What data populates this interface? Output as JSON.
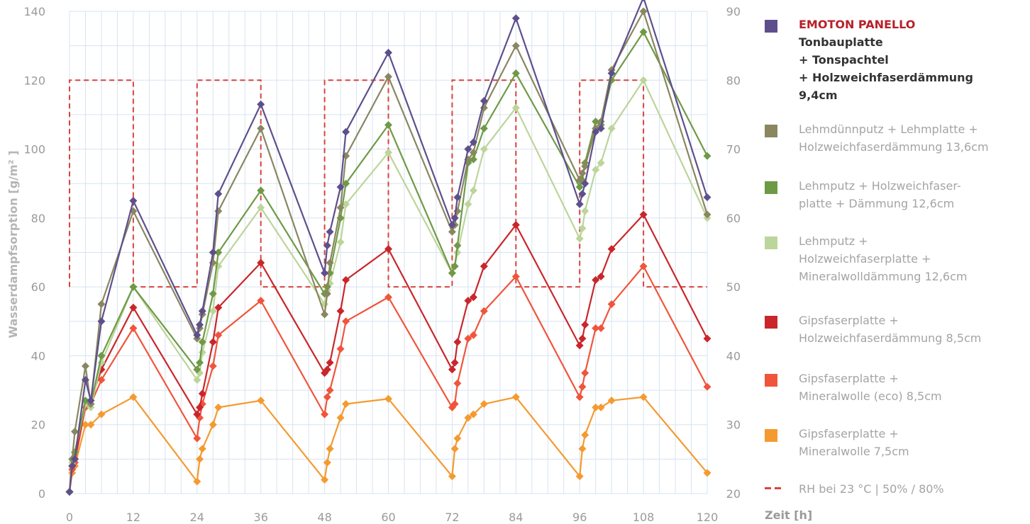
{
  "chart_data": {
    "type": "line",
    "xlabel": "Zeit [h]",
    "ylabel": "Wasserdampfsorption [g/m² ]",
    "y2label": "",
    "xlim": [
      0,
      120
    ],
    "ylim": [
      0,
      140
    ],
    "y2lim": [
      20,
      90
    ],
    "x_ticks": [
      0,
      12,
      24,
      36,
      48,
      60,
      72,
      84,
      96,
      108,
      120
    ],
    "y_ticks": [
      0,
      20,
      40,
      60,
      80,
      100,
      120,
      140
    ],
    "y2_ticks": [
      20,
      30,
      40,
      50,
      60,
      70,
      80,
      90
    ],
    "grid": true,
    "legend_position": "right",
    "x": [
      0,
      0.5,
      1,
      3,
      4,
      6,
      12,
      24,
      24.5,
      25,
      27,
      28,
      30,
      36,
      48,
      48.5,
      49,
      51,
      52,
      54,
      60,
      72,
      72.5,
      73,
      75,
      76,
      78,
      84,
      96,
      96.5,
      97,
      99,
      100,
      102,
      108,
      120
    ],
    "series": [
      {
        "name": "EMOTON PANELLO Tonbauplatte + Tonspachtel + Holzweichfaserdämmung 9,4cm",
        "color": "#5e4f8c",
        "marker": true,
        "values": [
          0.5,
          8,
          10,
          33,
          27,
          50,
          85,
          46,
          49,
          53,
          70,
          87,
          null,
          113,
          64,
          72,
          76,
          89,
          105,
          null,
          128,
          78,
          80,
          86,
          100,
          102,
          114,
          138,
          84,
          87,
          90,
          105,
          106,
          122,
          144,
          86
        ]
      },
      {
        "name": "Lehmdünnputz + Lehmplatte + Holzweichfaserdämmung 13,6cm",
        "color": "#8a8660",
        "marker": true,
        "values": [
          0.5,
          10,
          18,
          37,
          26,
          55,
          82,
          45,
          48,
          52,
          67,
          82,
          null,
          106,
          52,
          58,
          67,
          83,
          98,
          null,
          121,
          76,
          78,
          82,
          97,
          99,
          112,
          130,
          91,
          93,
          95,
          106,
          108,
          123,
          140,
          81
        ]
      },
      {
        "name": "Lehmputz + Holzweichfaserplatte + Dämmung 12,6cm",
        "color": "#6e9a45",
        "marker": true,
        "values": [
          0.5,
          10,
          12,
          27,
          26,
          40,
          60,
          36,
          38,
          44,
          58,
          70,
          null,
          88,
          58,
          60,
          64,
          80,
          90,
          null,
          107,
          64,
          66,
          72,
          96,
          97,
          106,
          122,
          89,
          91,
          96,
          108,
          107,
          120,
          134,
          98
        ]
      },
      {
        "name": "Lehmputz + Holzweichfaserplatte + Mineralwolldämmung 12,6cm",
        "color": "#bcd59a",
        "marker": true,
        "values": [
          0.5,
          9,
          12,
          26,
          25,
          38,
          60,
          33,
          35,
          41,
          53,
          66,
          null,
          83,
          55,
          59,
          61,
          73,
          84,
          null,
          99,
          64,
          66,
          70,
          84,
          88,
          100,
          112,
          74,
          77,
          82,
          94,
          96,
          106,
          120,
          80
        ]
      },
      {
        "name": "Gipsfaserplatte + Holzweichfaserdämmung 8,5cm",
        "color": "#c9262b",
        "marker": true,
        "values": [
          0.5,
          8,
          10,
          26,
          27,
          36,
          54,
          23,
          25,
          29,
          44,
          54,
          null,
          67,
          35,
          36,
          38,
          53,
          62,
          null,
          71,
          36,
          38,
          44,
          56,
          57,
          66,
          78,
          43,
          45,
          49,
          62,
          63,
          71,
          81,
          45
        ]
      },
      {
        "name": "Gipsfaserplatte + Mineralwolle (eco) 8,5cm",
        "color": "#f0553c",
        "marker": true,
        "values": [
          0.5,
          7,
          9,
          25,
          26,
          33,
          48,
          16,
          22,
          26,
          37,
          46,
          null,
          56,
          23,
          28,
          30,
          42,
          50,
          null,
          57,
          25,
          26,
          32,
          45,
          46,
          53,
          63,
          28,
          31,
          35,
          48,
          48,
          55,
          66,
          31
        ]
      },
      {
        "name": "Gipsfaserplatte + Mineralwolle 7,5cm",
        "color": "#f59a2f",
        "marker": true,
        "values": [
          0.5,
          6,
          8,
          20,
          20,
          23,
          28,
          3.5,
          10,
          13,
          20,
          25,
          null,
          27,
          4,
          9,
          13,
          22,
          26,
          null,
          27.5,
          5,
          13,
          16,
          22,
          23,
          26,
          28,
          5,
          13,
          17,
          25,
          25,
          27,
          28,
          6
        ]
      }
    ],
    "rh_series": {
      "name": "RH bei 23 °C | 50% / 80%",
      "color": "#d9433d",
      "axis": "right",
      "x": [
        0,
        0,
        12,
        12,
        24,
        24,
        36,
        36,
        48,
        48,
        60,
        60,
        72,
        72,
        84,
        84,
        96,
        96,
        108,
        108,
        120
      ],
      "values": [
        50,
        80,
        80,
        50,
        50,
        80,
        80,
        50,
        50,
        80,
        80,
        50,
        50,
        80,
        80,
        50,
        50,
        80,
        80,
        50,
        50
      ]
    }
  },
  "legend": {
    "items": [
      {
        "color": "#5e4f8c",
        "lines": [
          {
            "text": "EMOTON PANELLO",
            "style": "brand"
          },
          {
            "text": "Tonbauplatte",
            "style": "bold"
          },
          {
            "text": "+ Tonspachtel",
            "style": "bold"
          },
          {
            "text": "+ Holzweichfaserdämmung",
            "style": "bold"
          },
          {
            "text": "9,4cm",
            "style": "bold"
          }
        ]
      },
      {
        "color": "#8a8660",
        "lines": [
          {
            "text": "Lehmdünnputz + Lehmplatte +",
            "style": "normal"
          },
          {
            "text": "Holzweichfaserdämmung 13,6cm",
            "style": "normal"
          }
        ]
      },
      {
        "color": "#6e9a45",
        "lines": [
          {
            "text": "Lehmputz + Holzweichfaser-",
            "style": "normal"
          },
          {
            "text": "platte + Dämmung 12,6cm",
            "style": "normal"
          }
        ]
      },
      {
        "color": "#bcd59a",
        "lines": [
          {
            "text": "Lehmputz +",
            "style": "normal"
          },
          {
            "text": "Holzweichfaserplatte +",
            "style": "normal"
          },
          {
            "text": "Mineralwolldämmung 12,6cm",
            "style": "normal"
          }
        ]
      },
      {
        "color": "#c9262b",
        "lines": [
          {
            "text": "Gipsfaserplatte +",
            "style": "normal"
          },
          {
            "text": "Holzweichfaserdämmung 8,5cm",
            "style": "normal"
          }
        ]
      },
      {
        "color": "#f0553c",
        "lines": [
          {
            "text": "Gipsfaserplatte +",
            "style": "normal"
          },
          {
            "text": "Mineralwolle (eco) 8,5cm",
            "style": "normal"
          }
        ]
      },
      {
        "color": "#f59a2f",
        "lines": [
          {
            "text": "Gipsfaserplatte +",
            "style": "normal"
          },
          {
            "text": "Mineralwolle 7,5cm",
            "style": "normal"
          }
        ]
      },
      {
        "color": "#d9433d",
        "dashed": true,
        "lines": [
          {
            "text": "RH bei 23 °C | 50% / 80%",
            "style": "normal"
          }
        ]
      }
    ]
  }
}
